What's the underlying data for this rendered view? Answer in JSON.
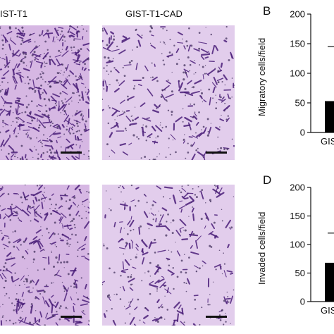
{
  "panels": {
    "top_left_title": "IST-T1",
    "top_right_title": "GIST-T1-CAD"
  },
  "colors": {
    "micro_bg_dense": "#d6b7e3",
    "micro_bg_light": "#e2cdec",
    "cell_stain": "#4b1f7a",
    "bar_fill": "#000000"
  },
  "chart_data": [
    {
      "panel_letter": "B",
      "type": "bar",
      "ylabel": "Migratory cells/field",
      "ylim": [
        0,
        200
      ],
      "yticks": [
        "0",
        "50",
        "100",
        "150",
        "200"
      ],
      "categories": [
        "GIS"
      ],
      "values": [
        53
      ],
      "error_cap_at": 145
    },
    {
      "panel_letter": "D",
      "type": "bar",
      "ylabel": "Invaded cells/field",
      "ylim": [
        0,
        200
      ],
      "yticks": [
        "0",
        "50",
        "100",
        "150",
        "200"
      ],
      "categories": [
        "GIS"
      ],
      "values": [
        68
      ],
      "error_cap_at": 120
    }
  ]
}
